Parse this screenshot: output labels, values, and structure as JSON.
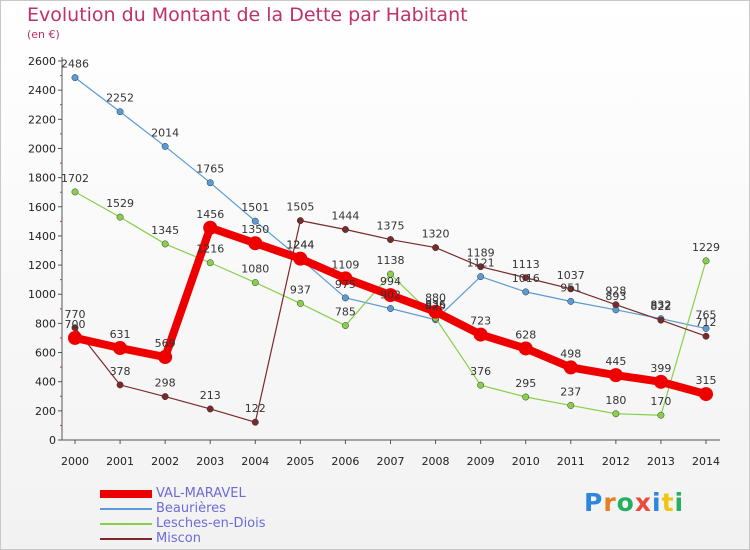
{
  "title": "Evolution du Montant de la Dette par Habitant",
  "subtitle": "(en €)",
  "logo": "Proxiti",
  "chart_data": {
    "type": "line",
    "categories": [
      "2000",
      "2001",
      "2002",
      "2003",
      "2004",
      "2005",
      "2006",
      "2007",
      "2008",
      "2009",
      "2010",
      "2011",
      "2012",
      "2013",
      "2014"
    ],
    "ylim": [
      0,
      2600
    ],
    "yticks": [
      0,
      200,
      400,
      600,
      800,
      1000,
      1200,
      1400,
      1600,
      1800,
      2000,
      2200,
      2400,
      2600
    ],
    "grid": false,
    "legend": "bottom-left",
    "series": [
      {
        "name": "VAL-MARAVEL",
        "color": "#ee0000",
        "values": [
          700,
          631,
          569,
          1456,
          1350,
          1244,
          1109,
          994,
          880,
          723,
          628,
          498,
          445,
          399,
          315
        ]
      },
      {
        "name": "Beaurières",
        "color": "#5b9bd5",
        "values": [
          2486,
          2252,
          2014,
          1765,
          1501,
          1244,
          975,
          902,
          825,
          1121,
          1016,
          951,
          893,
          832,
          765
        ]
      },
      {
        "name": "Lesches-en-Diois",
        "color": "#88d04a",
        "values": [
          1702,
          1529,
          1345,
          1216,
          1080,
          937,
          785,
          1138,
          836,
          376,
          295,
          237,
          180,
          170,
          1229
        ]
      },
      {
        "name": "Miscon",
        "color": "#7a2a2a",
        "values": [
          770,
          378,
          298,
          213,
          122,
          1505,
          1444,
          1375,
          1320,
          1189,
          1113,
          1037,
          928,
          822,
          712
        ]
      }
    ]
  }
}
